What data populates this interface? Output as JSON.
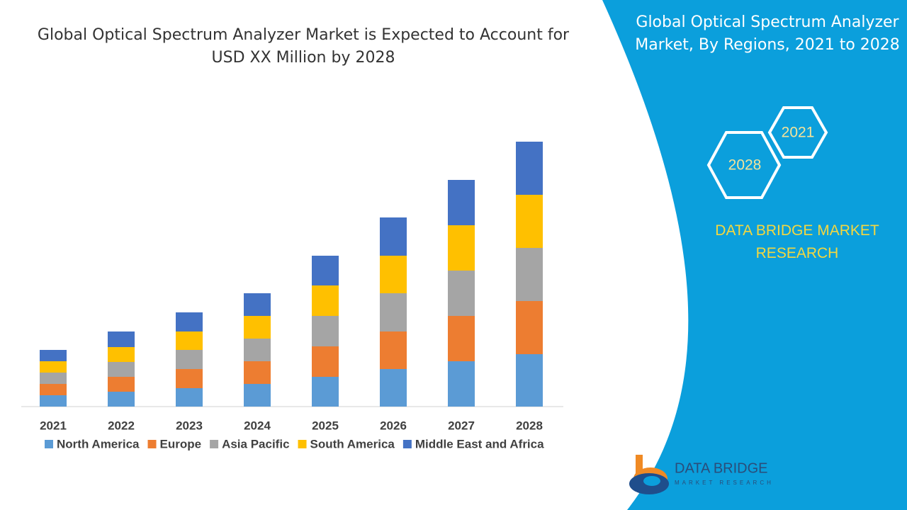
{
  "chart_data": {
    "type": "stacked-bar",
    "title": "Global Optical Spectrum Analyzer Market is Expected to Account for USD XX Million by 2028",
    "categories": [
      "2021",
      "2022",
      "2023",
      "2024",
      "2025",
      "2026",
      "2027",
      "2028"
    ],
    "series": [
      {
        "name": "North America",
        "color": "#5b9bd5",
        "values": [
          16,
          21,
          26,
          32,
          42,
          53,
          64,
          74
        ]
      },
      {
        "name": "Europe",
        "color": "#ed7d31",
        "values": [
          16,
          21,
          27,
          32,
          43,
          53,
          64,
          75
        ]
      },
      {
        "name": "Asia Pacific",
        "color": "#a5a5a5",
        "values": [
          16,
          21,
          27,
          32,
          43,
          54,
          64,
          75
        ]
      },
      {
        "name": "South America",
        "color": "#ffc000",
        "values": [
          16,
          21,
          26,
          32,
          43,
          53,
          64,
          75
        ]
      },
      {
        "name": "Middle East and Africa",
        "color": "#4472c4",
        "values": [
          16,
          22,
          27,
          32,
          42,
          54,
          64,
          75
        ]
      }
    ],
    "legend": "bottom"
  },
  "panel": {
    "title": "Global Optical Spectrum Analyzer Market, By Regions, 2021 to 2028",
    "hexagons": [
      "2021",
      "2028"
    ],
    "brand": "DATA BRIDGE MARKET RESEARCH"
  },
  "logo": {
    "name": "DATA BRIDGE",
    "tagline": "MARKET RESEARCH"
  }
}
